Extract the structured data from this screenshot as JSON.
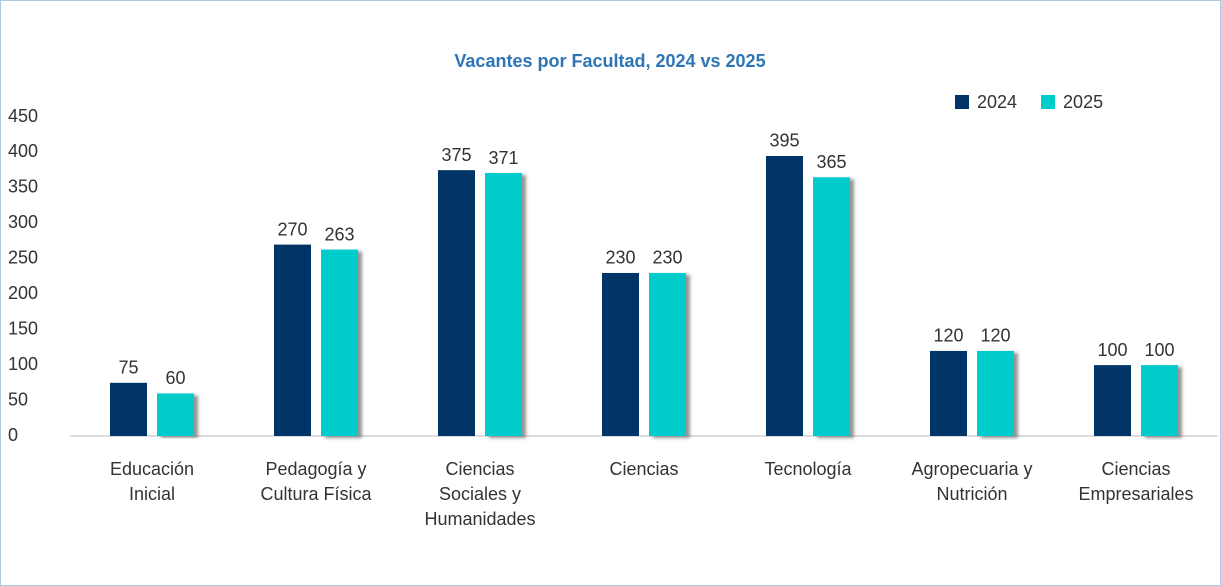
{
  "chart_data": {
    "type": "bar",
    "title": "Vacantes por Facultad, 2024 vs 2025",
    "categories": [
      "Educación Inicial",
      "Pedagogía y Cultura Física",
      "Ciencias Sociales y Humanidades",
      "Ciencias",
      "Tecnología",
      "Agropecuaria y Nutrición",
      "Ciencias Empresariales"
    ],
    "series": [
      {
        "name": "2024",
        "color": "#003366",
        "values": [
          75,
          270,
          375,
          230,
          395,
          120,
          100
        ]
      },
      {
        "name": "2025",
        "color": "#00cccc",
        "values": [
          60,
          263,
          371,
          230,
          365,
          120,
          100
        ]
      }
    ],
    "ylim": [
      0,
      450
    ],
    "yticks": [
      0,
      50,
      100,
      150,
      200,
      250,
      300,
      350,
      400,
      450
    ],
    "grid": false,
    "legend": "top-right"
  }
}
